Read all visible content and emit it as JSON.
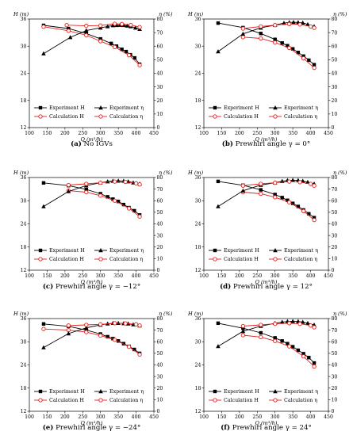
{
  "figure": {
    "axis_titles": {
      "left": "H (m)",
      "right": "η (%)",
      "x": "Q (m³/h)"
    },
    "legend": {
      "exp_H": "Experiment H",
      "calc_H": "Calculation H",
      "exp_eta": "Experiment η",
      "calc_eta": "Calculation η"
    },
    "colors": {
      "experiment": "#000000",
      "calculation": "#e0201b"
    }
  },
  "chart_data": [
    {
      "type": "line",
      "caption_label": "(a)",
      "caption_text": "No IGVs",
      "xlim": [
        100,
        450
      ],
      "xticks": [
        100,
        150,
        200,
        250,
        300,
        350,
        400,
        450
      ],
      "ylim_left": [
        12,
        36
      ],
      "yticks_left": [
        12,
        18,
        24,
        30,
        36
      ],
      "ylim_right": [
        0,
        80
      ],
      "yticks_right": [
        0,
        10,
        20,
        30,
        40,
        50,
        60,
        70,
        80
      ],
      "series": [
        {
          "name": "Experiment H",
          "axis": "left",
          "marker": "square",
          "x": [
            140,
            210,
            260,
            300,
            330,
            345,
            360,
            372,
            384,
            396,
            410
          ],
          "y": [
            34.6,
            33.9,
            32.8,
            31.6,
            30.6,
            30.0,
            29.3,
            28.8,
            28.1,
            27.4,
            26.0
          ]
        },
        {
          "name": "Calculation H",
          "axis": "left",
          "marker": "circle",
          "x": [
            140,
            210,
            260,
            300,
            340,
            380,
            410
          ],
          "y": [
            34.3,
            33.4,
            32.4,
            31.1,
            29.8,
            28.0,
            25.8
          ]
        },
        {
          "name": "Experiment η",
          "axis": "right",
          "marker": "triangle",
          "x": [
            140,
            215,
            260,
            300,
            320,
            335,
            345,
            355,
            365,
            375,
            385,
            398,
            410
          ],
          "y": [
            54.5,
            66.5,
            71.5,
            73.5,
            74.5,
            75.2,
            75.4,
            75.5,
            75.4,
            75.0,
            74.5,
            73.5,
            72.5
          ]
        },
        {
          "name": "Calculation η",
          "axis": "right",
          "marker": "circle",
          "x": [
            205,
            260,
            300,
            340,
            360,
            385,
            410
          ],
          "y": [
            75.5,
            75.0,
            75.2,
            76.5,
            76.3,
            75.6,
            74.0
          ]
        }
      ]
    },
    {
      "type": "line",
      "caption_label": "(b)",
      "caption_text": "Prewhirl angle γ = 0°",
      "xlim": [
        100,
        450
      ],
      "xticks": [
        100,
        150,
        200,
        250,
        300,
        350,
        400,
        450
      ],
      "ylim_left": [
        12,
        36
      ],
      "yticks_left": [
        12,
        18,
        24,
        30,
        36
      ],
      "ylim_right": [
        0,
        80
      ],
      "yticks_right": [
        0,
        10,
        20,
        30,
        40,
        50,
        60,
        70,
        80
      ],
      "series": [
        {
          "name": "Experiment H",
          "axis": "left",
          "marker": "square",
          "x": [
            140,
            210,
            260,
            300,
            320,
            335,
            350,
            365,
            380,
            395,
            410
          ],
          "y": [
            35.1,
            34.1,
            32.8,
            31.5,
            30.7,
            30.1,
            29.4,
            28.6,
            27.8,
            26.9,
            25.9
          ]
        },
        {
          "name": "Calculation H",
          "axis": "left",
          "marker": "circle",
          "x": [
            210,
            260,
            300,
            340,
            380,
            410
          ],
          "y": [
            32.0,
            31.7,
            30.8,
            29.6,
            27.3,
            25.2
          ]
        },
        {
          "name": "Experiment η",
          "axis": "right",
          "marker": "triangle",
          "x": [
            140,
            210,
            260,
            300,
            325,
            340,
            352,
            365,
            378,
            392,
            410
          ],
          "y": [
            56.0,
            69.0,
            73.5,
            75.5,
            77.0,
            77.5,
            77.6,
            77.5,
            77.2,
            76.0,
            74.5
          ]
        },
        {
          "name": "Calculation η",
          "axis": "right",
          "marker": "circle",
          "x": [
            210,
            260,
            300,
            340,
            370,
            400,
            410
          ],
          "y": [
            73.0,
            74.5,
            75.5,
            76.3,
            76.0,
            74.5,
            73.5
          ]
        }
      ]
    },
    {
      "type": "line",
      "caption_label": "(c)",
      "caption_text": "Prewhirl angle γ = −12°",
      "xlim": [
        100,
        450
      ],
      "xticks": [
        100,
        150,
        200,
        250,
        300,
        350,
        400,
        450
      ],
      "ylim_left": [
        12,
        36
      ],
      "yticks_left": [
        12,
        18,
        24,
        30,
        36
      ],
      "ylim_right": [
        0,
        80
      ],
      "yticks_right": [
        0,
        10,
        20,
        30,
        40,
        50,
        60,
        70,
        80
      ],
      "series": [
        {
          "name": "Experiment H",
          "axis": "left",
          "marker": "square",
          "x": [
            140,
            210,
            260,
            300,
            320,
            335,
            350,
            365,
            380,
            395,
            410
          ],
          "y": [
            34.6,
            33.9,
            32.9,
            31.8,
            31.0,
            30.4,
            29.8,
            29.0,
            28.2,
            27.4,
            26.3
          ]
        },
        {
          "name": "Calculation H",
          "axis": "left",
          "marker": "circle",
          "x": [
            210,
            260,
            300,
            340,
            380,
            410
          ],
          "y": [
            32.6,
            32.2,
            31.3,
            30.0,
            28.0,
            25.9
          ]
        },
        {
          "name": "Experiment η",
          "axis": "right",
          "marker": "triangle",
          "x": [
            140,
            210,
            260,
            300,
            320,
            335,
            350,
            365,
            378,
            392,
            410
          ],
          "y": [
            55.0,
            68.0,
            73.0,
            75.5,
            76.5,
            77.0,
            77.1,
            77.0,
            76.5,
            75.5,
            74.5
          ]
        },
        {
          "name": "Calculation η",
          "axis": "right",
          "marker": "circle",
          "x": [
            210,
            260,
            300,
            340,
            370,
            400,
            410
          ],
          "y": [
            73.5,
            74.5,
            75.5,
            76.5,
            76.2,
            75.0,
            74.0
          ]
        }
      ]
    },
    {
      "type": "line",
      "caption_label": "(d)",
      "caption_text": "Prewhirl angle γ = 12°",
      "xlim": [
        100,
        450
      ],
      "xticks": [
        100,
        150,
        200,
        250,
        300,
        350,
        400,
        450
      ],
      "ylim_left": [
        12,
        36
      ],
      "yticks_left": [
        12,
        18,
        24,
        30,
        36
      ],
      "ylim_right": [
        0,
        80
      ],
      "yticks_right": [
        0,
        10,
        20,
        30,
        40,
        50,
        60,
        70,
        80
      ],
      "series": [
        {
          "name": "Experiment H",
          "axis": "left",
          "marker": "square",
          "x": [
            140,
            210,
            260,
            300,
            320,
            335,
            350,
            365,
            380,
            395,
            410
          ],
          "y": [
            35.0,
            34.0,
            32.8,
            31.6,
            30.8,
            30.1,
            29.3,
            28.5,
            27.6,
            26.6,
            25.6
          ]
        },
        {
          "name": "Calculation H",
          "axis": "left",
          "marker": "circle",
          "x": [
            210,
            260,
            300,
            340,
            380,
            410
          ],
          "y": [
            32.2,
            31.8,
            30.9,
            29.6,
            27.3,
            25.0
          ]
        },
        {
          "name": "Experiment η",
          "axis": "right",
          "marker": "triangle",
          "x": [
            140,
            210,
            260,
            300,
            320,
            335,
            350,
            365,
            378,
            392,
            410
          ],
          "y": [
            55.0,
            68.5,
            73.5,
            75.5,
            76.8,
            77.5,
            77.7,
            77.6,
            77.0,
            76.0,
            74.5
          ]
        },
        {
          "name": "Calculation η",
          "axis": "right",
          "marker": "circle",
          "x": [
            210,
            260,
            300,
            340,
            370,
            400,
            410
          ],
          "y": [
            73.0,
            74.5,
            75.5,
            76.5,
            76.0,
            74.5,
            73.0
          ]
        }
      ]
    },
    {
      "type": "line",
      "caption_label": "(e)",
      "caption_text": "Prewhirl angle γ = −24°",
      "xlim": [
        100,
        450
      ],
      "xticks": [
        100,
        150,
        200,
        250,
        300,
        350,
        400,
        450
      ],
      "ylim_left": [
        12,
        36
      ],
      "yticks_left": [
        12,
        18,
        24,
        30,
        36
      ],
      "ylim_right": [
        0,
        80
      ],
      "yticks_right": [
        0,
        10,
        20,
        30,
        40,
        50,
        60,
        70,
        80
      ],
      "series": [
        {
          "name": "Experiment H",
          "axis": "left",
          "marker": "square",
          "x": [
            140,
            210,
            260,
            300,
            320,
            335,
            350,
            365,
            380,
            395,
            410
          ],
          "y": [
            34.6,
            34.0,
            33.0,
            32.0,
            31.3,
            30.8,
            30.2,
            29.5,
            28.8,
            28.0,
            27.0
          ]
        },
        {
          "name": "Calculation H",
          "axis": "left",
          "marker": "circle",
          "x": [
            140,
            210,
            260,
            300,
            340,
            380,
            410
          ],
          "y": [
            33.3,
            33.0,
            32.5,
            31.6,
            30.5,
            28.7,
            26.7
          ]
        },
        {
          "name": "Experiment η",
          "axis": "right",
          "marker": "triangle",
          "x": [
            140,
            210,
            260,
            300,
            320,
            335,
            350,
            365,
            378,
            392,
            410
          ],
          "y": [
            55.0,
            67.0,
            72.0,
            74.5,
            75.5,
            76.0,
            76.0,
            75.8,
            75.5,
            74.8,
            73.8
          ]
        },
        {
          "name": "Calculation η",
          "axis": "right",
          "marker": "circle",
          "x": [
            210,
            260,
            300,
            340,
            370,
            400,
            410
          ],
          "y": [
            74.0,
            74.5,
            75.0,
            76.0,
            75.8,
            75.0,
            74.0
          ]
        }
      ]
    },
    {
      "type": "line",
      "caption_label": "(f)",
      "caption_text": "Prewhirl angle γ = 24°",
      "xlim": [
        100,
        450
      ],
      "xticks": [
        100,
        150,
        200,
        250,
        300,
        350,
        400,
        450
      ],
      "ylim_left": [
        12,
        36
      ],
      "yticks_left": [
        12,
        18,
        24,
        30,
        36
      ],
      "ylim_right": [
        0,
        80
      ],
      "yticks_right": [
        0,
        10,
        20,
        30,
        40,
        50,
        60,
        70,
        80
      ],
      "series": [
        {
          "name": "Experiment H",
          "axis": "left",
          "marker": "square",
          "x": [
            140,
            210,
            260,
            300,
            320,
            335,
            350,
            365,
            380,
            395,
            410
          ],
          "y": [
            34.8,
            33.5,
            32.3,
            31.0,
            30.2,
            29.5,
            28.7,
            27.8,
            26.9,
            25.9,
            24.5
          ]
        },
        {
          "name": "Calculation H",
          "axis": "left",
          "marker": "circle",
          "x": [
            210,
            260,
            300,
            340,
            380,
            410
          ],
          "y": [
            31.7,
            31.2,
            30.2,
            28.8,
            26.2,
            23.6
          ]
        },
        {
          "name": "Experiment η",
          "axis": "right",
          "marker": "triangle",
          "x": [
            140,
            210,
            260,
            300,
            320,
            335,
            350,
            365,
            378,
            392,
            410
          ],
          "y": [
            56.0,
            69.0,
            73.5,
            76.0,
            77.0,
            77.5,
            77.6,
            77.5,
            77.0,
            76.0,
            74.5
          ]
        },
        {
          "name": "Calculation η",
          "axis": "right",
          "marker": "circle",
          "x": [
            210,
            260,
            300,
            340,
            370,
            400,
            410
          ],
          "y": [
            73.5,
            74.5,
            75.5,
            76.0,
            75.5,
            74.0,
            72.5
          ]
        }
      ]
    }
  ]
}
